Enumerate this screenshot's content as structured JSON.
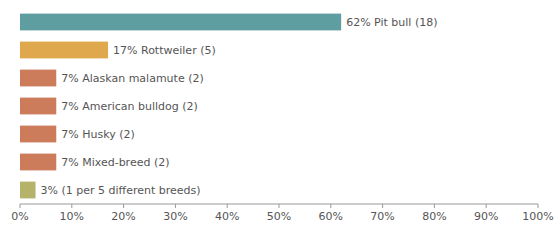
{
  "chart_data": {
    "type": "bar",
    "orientation": "horizontal",
    "categories": [
      "3% (1 per 5 different breeds)",
      "7% Mixed-breed (2)",
      "7% Husky (2)",
      "7% American bulldog (2)",
      "7% Alaskan malamute (2)",
      "17% Rottweiler (5)",
      "62% Pit bull (18)"
    ],
    "values": [
      3,
      7,
      7,
      7,
      7,
      17,
      62
    ],
    "colors": [
      "#b5b36a",
      "#cc7c5a",
      "#cc7c5a",
      "#cc7c5a",
      "#cc7c5a",
      "#e0a84c",
      "#5f9ea0"
    ],
    "xlim": [
      0,
      100
    ],
    "xticks": [
      {
        "value": 0,
        "label": "0%"
      },
      {
        "value": 10,
        "label": "10%"
      },
      {
        "value": 20,
        "label": "20%"
      },
      {
        "value": 30,
        "label": "30%"
      },
      {
        "value": 40,
        "label": "40%"
      },
      {
        "value": 50,
        "label": "50%"
      },
      {
        "value": 60,
        "label": "60%"
      },
      {
        "value": 70,
        "label": "70%"
      },
      {
        "value": 80,
        "label": "80%"
      },
      {
        "value": 90,
        "label": "90%"
      },
      {
        "value": 100,
        "label": "100%"
      }
    ],
    "grid": false,
    "tick_labels": "x"
  }
}
